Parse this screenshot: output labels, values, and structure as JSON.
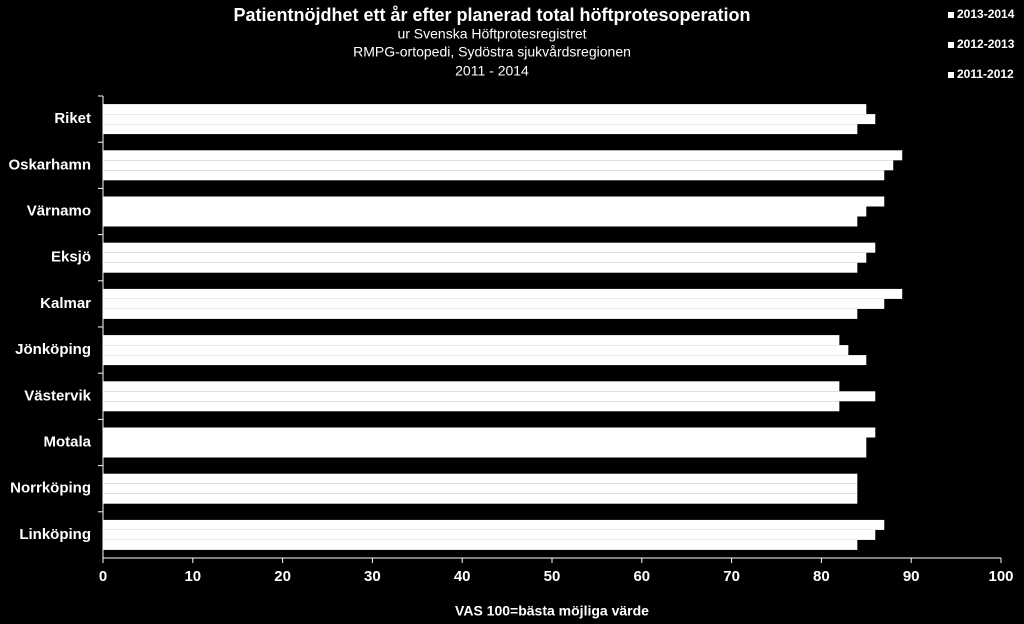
{
  "chart_data": {
    "type": "hbar",
    "title": "Patientnöjdhet ett år efter planerad total höftprotesoperation",
    "subtitle": [
      "ur Svenska Höftprotesregistret",
      "RMPG-ortopedi, Sydöstra sjukvårdsregionen",
      "2011 - 2014"
    ],
    "x_label": "VAS 100=bästa möjliga värde",
    "categories": [
      "Riket",
      "Oskarhamn",
      "Värnamo",
      "Eksjö",
      "Kalmar",
      "Jönköping",
      "Västervik",
      "Motala",
      "Norrköping",
      "Linköping"
    ],
    "series": [
      {
        "name": "2013-2014",
        "color": "#ffffff",
        "values": [
          85,
          89,
          87,
          86,
          89,
          82,
          82,
          86,
          84,
          87
        ]
      },
      {
        "name": "2012-2013",
        "color": "#ffffff",
        "values": [
          86,
          88,
          85,
          85,
          87,
          83,
          86,
          85,
          84,
          86
        ]
      },
      {
        "name": "2011-2012",
        "color": "#ffffff",
        "values": [
          84,
          87,
          84,
          84,
          84,
          85,
          82,
          85,
          84,
          84
        ]
      }
    ],
    "xlim": [
      0,
      100
    ],
    "xticks": [
      0,
      10,
      20,
      30,
      40,
      50,
      60,
      70,
      80,
      90,
      100
    ],
    "legend": "top-right"
  }
}
